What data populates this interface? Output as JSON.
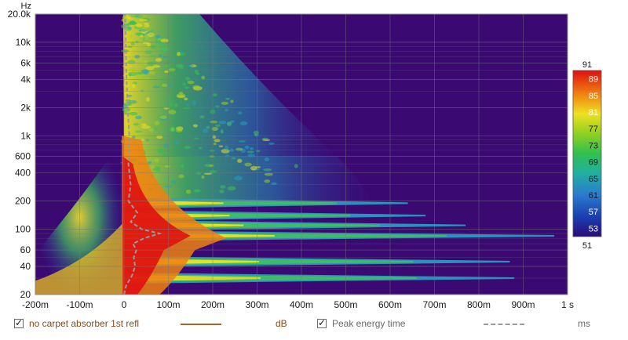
{
  "chart_data": {
    "type": "heatmap",
    "title": "",
    "y_axis_label": "Hz",
    "x_tick_labels": [
      "-200m",
      "-100m",
      "0",
      "100m",
      "200m",
      "300m",
      "400m",
      "500m",
      "600m",
      "700m",
      "800m",
      "900m",
      "1 s"
    ],
    "x_tick_values_ms": [
      -200,
      -100,
      0,
      100,
      200,
      300,
      400,
      500,
      600,
      700,
      800,
      900,
      1000
    ],
    "y_tick_labels": [
      "20.0k",
      "10k",
      "6k",
      "4k",
      "2k",
      "1k",
      "600",
      "400",
      "200",
      "100",
      "60",
      "40",
      "20"
    ],
    "y_tick_values_hz": [
      20000,
      10000,
      6000,
      4000,
      2000,
      1000,
      600,
      400,
      200,
      100,
      60,
      40,
      20
    ],
    "xlim_ms": [
      -200,
      1000
    ],
    "ylim_hz": [
      20,
      20000
    ],
    "y_scale": "log",
    "grid": true,
    "colorbar": {
      "min_label": "51",
      "max_label": "91",
      "tick_labels": [
        "89",
        "85",
        "81",
        "77",
        "73",
        "69",
        "65",
        "61",
        "57",
        "53"
      ],
      "tick_values": [
        89,
        85,
        81,
        77,
        73,
        69,
        65,
        61,
        57,
        53
      ],
      "range_db": [
        51,
        91
      ]
    },
    "decay_ridges": [
      {
        "freq_hz": 85,
        "end_ms": 970
      },
      {
        "freq_hz": 45,
        "end_ms": 870
      },
      {
        "freq_hz": 30,
        "end_ms": 880
      },
      {
        "freq_hz": 110,
        "end_ms": 770
      },
      {
        "freq_hz": 140,
        "end_ms": 680
      },
      {
        "freq_hz": 190,
        "end_ms": 640
      }
    ],
    "peak_energy_time_ms": [
      {
        "freq_hz": 20,
        "t_ms": 0
      },
      {
        "freq_hz": 25,
        "t_ms": 5
      },
      {
        "freq_hz": 32,
        "t_ms": 18
      },
      {
        "freq_hz": 40,
        "t_ms": 25
      },
      {
        "freq_hz": 50,
        "t_ms": 22
      },
      {
        "freq_hz": 60,
        "t_ms": 28
      },
      {
        "freq_hz": 70,
        "t_ms": 20
      },
      {
        "freq_hz": 80,
        "t_ms": 45
      },
      {
        "freq_hz": 90,
        "t_ms": 80
      },
      {
        "freq_hz": 100,
        "t_ms": 40
      },
      {
        "freq_hz": 120,
        "t_ms": 15
      },
      {
        "freq_hz": 150,
        "t_ms": 30
      },
      {
        "freq_hz": 200,
        "t_ms": 10
      },
      {
        "freq_hz": 300,
        "t_ms": 15
      },
      {
        "freq_hz": 500,
        "t_ms": 10
      },
      {
        "freq_hz": 1000,
        "t_ms": 12
      },
      {
        "freq_hz": 2000,
        "t_ms": 8
      },
      {
        "freq_hz": 5000,
        "t_ms": 5
      },
      {
        "freq_hz": 20000,
        "t_ms": 3
      }
    ],
    "colors": {
      "background": "#3a0a72",
      "gridline": "#7a7a7a",
      "series1_line": "#a8652c",
      "peak_line": "#9a9a9a"
    },
    "legend": [
      {
        "label": "no carpet absorber 1st refl",
        "unit": "dB",
        "checked": true,
        "color": "#a8652c"
      },
      {
        "label": "Peak energy time",
        "unit": "ms",
        "checked": true,
        "color": "#9a9a9a"
      }
    ]
  }
}
